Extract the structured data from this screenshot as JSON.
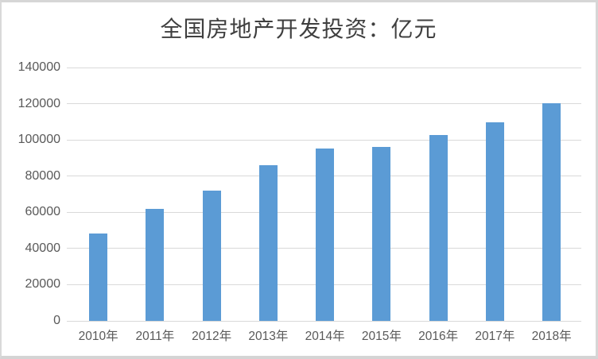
{
  "chart_data": {
    "type": "bar",
    "title": "全国房地产开发投资：亿元",
    "categories": [
      "2010年",
      "2011年",
      "2012年",
      "2013年",
      "2014年",
      "2015年",
      "2016年",
      "2017年",
      "2018年"
    ],
    "values": [
      48267,
      61740,
      71804,
      86013,
      95036,
      95979,
      102581,
      109799,
      120264
    ],
    "xlabel": "",
    "ylabel": "",
    "ylim": [
      0,
      140000
    ],
    "yticks": [
      0,
      20000,
      40000,
      60000,
      80000,
      100000,
      120000,
      140000
    ],
    "ytick_labels": [
      "0",
      "20000",
      "40000",
      "60000",
      "80000",
      "100000",
      "120000",
      "140000"
    ],
    "grid": true,
    "legend": false,
    "bar_color": "#5b9bd5",
    "gridline_color": "#d9d9d9",
    "axis_text_color": "#595959",
    "title_color": "#3f3f3f",
    "frame_border_color": "#d6d6d6"
  }
}
